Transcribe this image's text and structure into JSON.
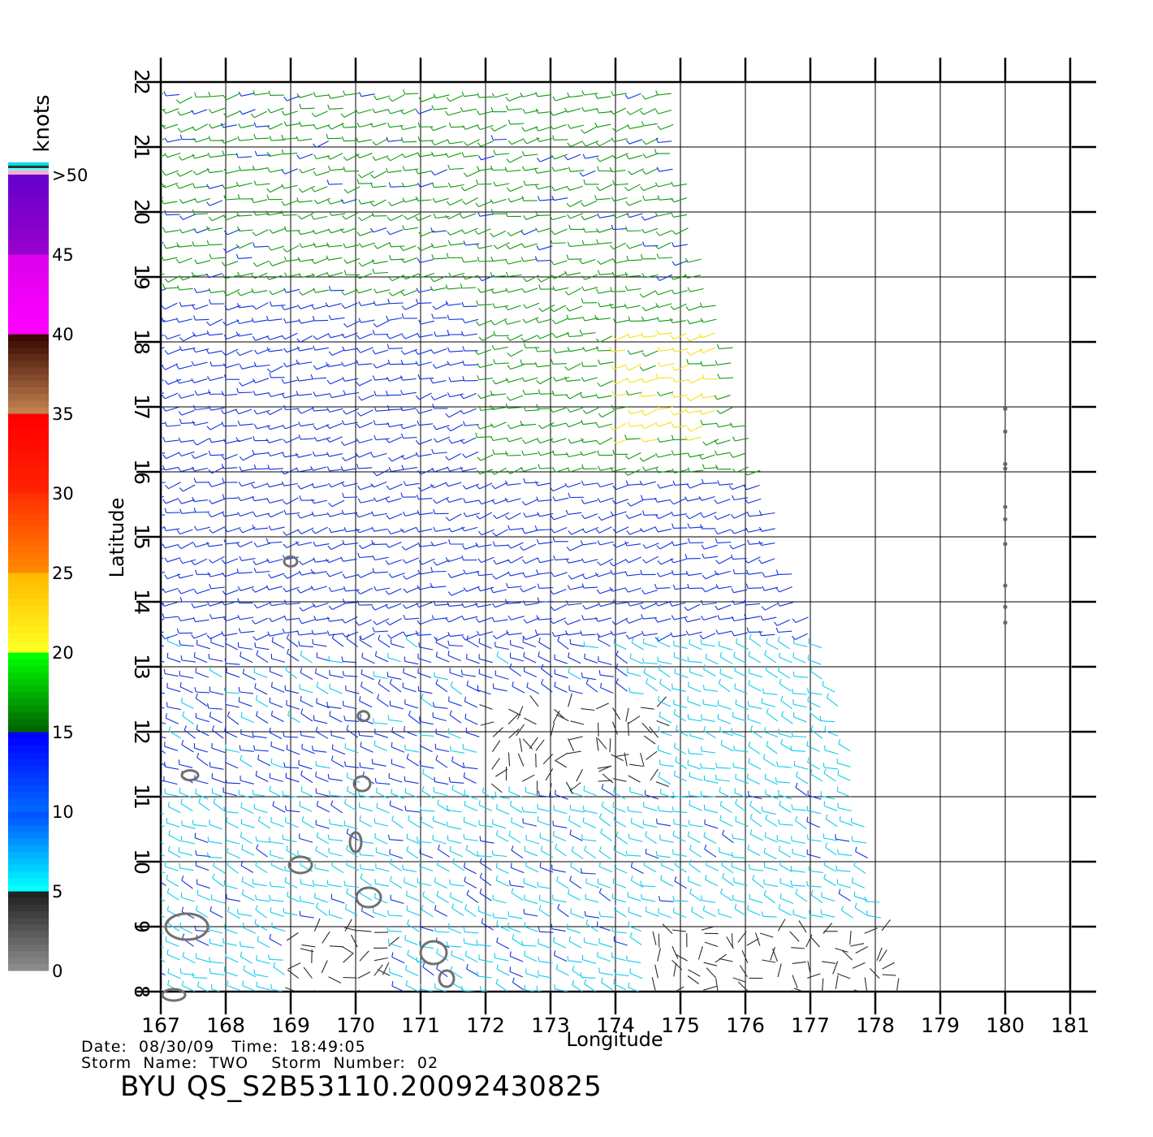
{
  "chart_data": {
    "type": "wind-vector-map",
    "xlabel": "Longitude",
    "ylabel": "Latitude",
    "x_ticks": [
      167,
      168,
      169,
      170,
      171,
      172,
      173,
      174,
      175,
      176,
      177,
      178,
      179,
      180,
      181
    ],
    "y_ticks": [
      8,
      9,
      10,
      11,
      12,
      13,
      14,
      15,
      16,
      17,
      18,
      19,
      20,
      21,
      22
    ],
    "xlim": [
      166.8,
      181.4
    ],
    "ylim": [
      8,
      22
    ],
    "grid": true,
    "swath_edge": [
      [
        175.0,
        22.0
      ],
      [
        175.0,
        21.0
      ],
      [
        175.2,
        20.0
      ],
      [
        175.4,
        19.0
      ],
      [
        175.8,
        18.0
      ],
      [
        176.0,
        17.0
      ],
      [
        176.3,
        16.0
      ],
      [
        176.6,
        15.0
      ],
      [
        176.9,
        14.0
      ],
      [
        177.3,
        13.0
      ],
      [
        177.6,
        12.0
      ],
      [
        177.8,
        11.0
      ],
      [
        178.0,
        10.0
      ],
      [
        178.2,
        9.0
      ],
      [
        178.5,
        8.0
      ]
    ],
    "colorbar": {
      "label": "knots",
      "tick_labels": [
        "0",
        "5",
        "10",
        "15",
        "20",
        "25",
        "30",
        "35",
        "40",
        "45",
        ">50"
      ],
      "bands": [
        {
          "range": [
            0,
            5
          ],
          "colors": [
            "#8c8c8c",
            "#222222"
          ]
        },
        {
          "range": [
            5,
            10
          ],
          "colors": [
            "#00ffff",
            "#0055ff"
          ]
        },
        {
          "range": [
            10,
            15
          ],
          "colors": [
            "#0066ff",
            "#0000ff"
          ]
        },
        {
          "range": [
            15,
            20
          ],
          "colors": [
            "#006600",
            "#00ff00"
          ]
        },
        {
          "range": [
            20,
            25
          ],
          "colors": [
            "#ffff22",
            "#ffbb00"
          ]
        },
        {
          "range": [
            25,
            30
          ],
          "colors": [
            "#ff8800",
            "#ff3300"
          ]
        },
        {
          "range": [
            30,
            35
          ],
          "colors": [
            "#ff2200",
            "#ff0000"
          ]
        },
        {
          "range": [
            35,
            40
          ],
          "colors": [
            "#c08050",
            "#3a0a00"
          ]
        },
        {
          "range": [
            40,
            45
          ],
          "colors": [
            "#ff00ff",
            "#dd00ee"
          ]
        },
        {
          "range": [
            45,
            50
          ],
          "colors": [
            "#9900cc",
            "#6600cc"
          ]
        },
        {
          "range": [
            50,
            55
          ],
          "colors": [
            "#7000c8",
            "#5a00b8"
          ]
        }
      ]
    },
    "regions": [
      {
        "lat_min": 18.7,
        "lat_max": 22.2,
        "lon_min": 167.0,
        "lon_max": 181.0,
        "speed": 16
      },
      {
        "lat_min": 16.0,
        "lat_max": 18.7,
        "lon_min": 167.0,
        "lon_max": 172.0,
        "speed": 13
      },
      {
        "lat_min": 16.0,
        "lat_max": 18.7,
        "lon_min": 172.0,
        "lon_max": 181.0,
        "speed": 17
      },
      {
        "lat_min": 16.3,
        "lat_max": 18.2,
        "lon_min": 174.0,
        "lon_max": 175.6,
        "speed": 21
      },
      {
        "lat_min": 13.5,
        "lat_max": 16.0,
        "lon_min": 167.0,
        "lon_max": 181.0,
        "speed": 12
      },
      {
        "lat_min": 11.0,
        "lat_max": 13.5,
        "lon_min": 167.0,
        "lon_max": 181.0,
        "speed": 11
      },
      {
        "lat_min": 11.0,
        "lat_max": 13.5,
        "lon_min": 174.2,
        "lon_max": 181.0,
        "speed": 8
      },
      {
        "lat_min": 11.0,
        "lat_max": 12.5,
        "lon_min": 172.0,
        "lon_max": 174.8,
        "speed": 3
      },
      {
        "lat_min": 8.0,
        "lat_max": 11.0,
        "lon_min": 167.0,
        "lon_max": 181.0,
        "speed": 9
      },
      {
        "lat_min": 8.0,
        "lat_max": 9.0,
        "lon_min": 169.0,
        "lon_max": 170.5,
        "speed": 3
      },
      {
        "lat_min": 8.0,
        "lat_max": 9.0,
        "lon_min": 174.5,
        "lon_max": 178.5,
        "speed": 3
      }
    ],
    "islands": [
      {
        "lon": 169.0,
        "lat": 14.62,
        "rx": 8,
        "ry": 6
      },
      {
        "lon": 170.12,
        "lat": 12.24,
        "rx": 7,
        "ry": 6
      },
      {
        "lon": 167.45,
        "lat": 11.33,
        "rx": 10,
        "ry": 6
      },
      {
        "lon": 170.1,
        "lat": 11.2,
        "rx": 10,
        "ry": 9
      },
      {
        "lon": 170.0,
        "lat": 10.3,
        "rx": 7,
        "ry": 12
      },
      {
        "lon": 169.15,
        "lat": 9.95,
        "rx": 14,
        "ry": 10
      },
      {
        "lon": 170.2,
        "lat": 9.45,
        "rx": 15,
        "ry": 12
      },
      {
        "lon": 167.4,
        "lat": 9.0,
        "rx": 26,
        "ry": 16
      },
      {
        "lon": 171.2,
        "lat": 8.6,
        "rx": 16,
        "ry": 14
      },
      {
        "lon": 167.2,
        "lat": 7.95,
        "rx": 14,
        "ry": 7
      },
      {
        "lon": 171.4,
        "lat": 8.2,
        "rx": 9,
        "ry": 10
      }
    ],
    "track_points": [
      {
        "lon": 180.0,
        "lat": 16.97
      },
      {
        "lon": 180.0,
        "lat": 16.62
      },
      {
        "lon": 180.0,
        "lat": 16.12
      },
      {
        "lon": 180.0,
        "lat": 16.05
      },
      {
        "lon": 180.0,
        "lat": 15.46
      },
      {
        "lon": 180.0,
        "lat": 15.27
      },
      {
        "lon": 180.0,
        "lat": 14.89
      },
      {
        "lon": 180.0,
        "lat": 14.25
      },
      {
        "lon": 180.0,
        "lat": 13.92
      },
      {
        "lon": 180.0,
        "lat": 13.68
      }
    ]
  },
  "info": {
    "date_line": "Date:  08/30/09   Time:  18:49:05",
    "storm_line": "Storm  Name:  TWO    Storm  Number:  02",
    "product_id": "BYU  QS_S2B53110.20092430825"
  }
}
